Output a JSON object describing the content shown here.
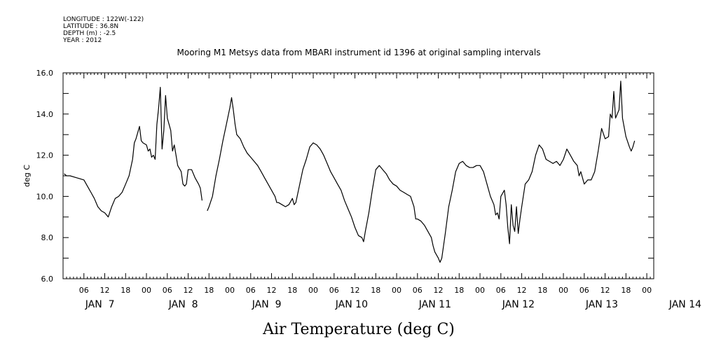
{
  "metadata_lines": [
    "LONGITUDE : 122W(-122)",
    "LATITUDE : 36.8N",
    "DEPTH (m) : -2.5",
    "YEAR : 2012"
  ],
  "chart_data": {
    "type": "line",
    "title": "Mooring M1 Metsys data from MBARI instrument id 1396 at original sampling intervals",
    "xlabel": "Air Temperature (deg C)",
    "ylabel": "deg C",
    "ylim": [
      6.0,
      16.0
    ],
    "ytick_labels": [
      "6.0",
      "8.0",
      "10.0",
      "12.0",
      "14.0",
      "16.0"
    ],
    "xlim_hours": [
      0,
      170
    ],
    "hour_ticks": [
      "06",
      "12",
      "18",
      "00",
      "06",
      "12",
      "18",
      "00",
      "06",
      "12",
      "18",
      "00",
      "06",
      "12",
      "18",
      "00",
      "06",
      "12",
      "18",
      "00",
      "06",
      "12",
      "18",
      "00",
      "06",
      "12",
      "18",
      "00"
    ],
    "day_labels": [
      "JAN  7",
      "JAN  8",
      "JAN  9",
      "JAN 10",
      "JAN 11",
      "JAN 12",
      "JAN 13",
      "JAN 14"
    ],
    "grid": false,
    "series": [
      {
        "color": "#000000",
        "segments": [
          [
            [
              0.3,
              11.1
            ],
            [
              1,
              11.0
            ],
            [
              2,
              11.0
            ],
            [
              4,
              10.9
            ],
            [
              6,
              10.8
            ],
            [
              7,
              10.5
            ],
            [
              8,
              10.2
            ],
            [
              9,
              9.9
            ],
            [
              10,
              9.5
            ],
            [
              11,
              9.3
            ],
            [
              12,
              9.2
            ],
            [
              13,
              9.0
            ],
            [
              14,
              9.5
            ],
            [
              15,
              9.9
            ],
            [
              16,
              10.0
            ],
            [
              17,
              10.2
            ],
            [
              18,
              10.6
            ],
            [
              19,
              11.0
            ],
            [
              20,
              11.8
            ],
            [
              20.5,
              12.6
            ],
            [
              21,
              12.8
            ],
            [
              22,
              13.4
            ],
            [
              22.5,
              12.7
            ],
            [
              23,
              12.6
            ],
            [
              24,
              12.5
            ],
            [
              24.5,
              12.2
            ],
            [
              25,
              12.3
            ],
            [
              25.5,
              11.9
            ],
            [
              26,
              12.0
            ],
            [
              26.5,
              11.8
            ],
            [
              27,
              13.5
            ],
            [
              27.5,
              14.3
            ],
            [
              28,
              15.3
            ],
            [
              28.5,
              12.3
            ],
            [
              29,
              13.2
            ],
            [
              29.5,
              14.9
            ],
            [
              30,
              13.8
            ],
            [
              31,
              13.2
            ],
            [
              31.5,
              12.2
            ],
            [
              32,
              12.5
            ],
            [
              32.5,
              12.0
            ],
            [
              33,
              11.5
            ],
            [
              34,
              11.2
            ],
            [
              34.5,
              10.6
            ],
            [
              35,
              10.5
            ],
            [
              35.5,
              10.6
            ],
            [
              36,
              11.3
            ],
            [
              37,
              11.3
            ],
            [
              38,
              10.9
            ],
            [
              39,
              10.6
            ],
            [
              39.5,
              10.4
            ],
            [
              40,
              9.8
            ]
          ],
          [
            [
              41.5,
              9.3
            ],
            [
              42,
              9.5
            ],
            [
              43,
              10.0
            ],
            [
              44,
              11.0
            ],
            [
              45,
              11.8
            ],
            [
              46,
              12.7
            ],
            [
              47,
              13.5
            ],
            [
              48,
              14.3
            ],
            [
              48.5,
              14.8
            ],
            [
              49,
              14.2
            ],
            [
              49.5,
              13.5
            ],
            [
              50,
              13.0
            ],
            [
              51,
              12.8
            ],
            [
              52,
              12.4
            ],
            [
              53,
              12.1
            ],
            [
              54,
              11.9
            ],
            [
              55,
              11.7
            ],
            [
              56,
              11.5
            ],
            [
              57,
              11.2
            ],
            [
              58,
              10.9
            ],
            [
              59,
              10.6
            ],
            [
              60,
              10.3
            ],
            [
              61,
              10.0
            ],
            [
              61.5,
              9.7
            ],
            [
              62,
              9.7
            ],
            [
              63,
              9.6
            ],
            [
              64,
              9.5
            ],
            [
              65,
              9.6
            ],
            [
              66,
              9.9
            ],
            [
              66.5,
              9.6
            ],
            [
              67,
              9.7
            ],
            [
              68,
              10.5
            ],
            [
              69,
              11.3
            ],
            [
              70,
              11.8
            ],
            [
              71,
              12.4
            ],
            [
              72,
              12.6
            ],
            [
              73,
              12.5
            ],
            [
              74,
              12.3
            ],
            [
              75,
              12.0
            ],
            [
              76,
              11.6
            ],
            [
              77,
              11.2
            ],
            [
              78,
              10.9
            ],
            [
              79,
              10.6
            ],
            [
              80,
              10.3
            ],
            [
              81,
              9.8
            ],
            [
              82,
              9.4
            ],
            [
              83,
              9.0
            ],
            [
              84,
              8.5
            ],
            [
              85,
              8.1
            ],
            [
              86,
              8.0
            ],
            [
              86.5,
              7.8
            ],
            [
              87,
              8.3
            ],
            [
              88,
              9.2
            ],
            [
              89,
              10.3
            ],
            [
              90,
              11.3
            ],
            [
              91,
              11.5
            ],
            [
              92,
              11.3
            ],
            [
              93,
              11.1
            ],
            [
              94,
              10.8
            ],
            [
              95,
              10.6
            ],
            [
              96,
              10.5
            ],
            [
              97,
              10.3
            ],
            [
              98,
              10.2
            ],
            [
              99,
              10.1
            ],
            [
              100,
              10.0
            ],
            [
              101,
              9.5
            ],
            [
              101.5,
              8.9
            ],
            [
              102,
              8.9
            ],
            [
              103,
              8.8
            ],
            [
              104,
              8.6
            ],
            [
              105,
              8.3
            ],
            [
              106,
              8.0
            ],
            [
              106.5,
              7.6
            ],
            [
              107,
              7.3
            ],
            [
              108,
              7.0
            ],
            [
              108.5,
              6.8
            ],
            [
              109,
              7.0
            ],
            [
              110,
              8.2
            ],
            [
              111,
              9.5
            ],
            [
              112,
              10.3
            ],
            [
              113,
              11.2
            ],
            [
              114,
              11.6
            ],
            [
              115,
              11.7
            ],
            [
              116,
              11.5
            ],
            [
              117,
              11.4
            ],
            [
              118,
              11.4
            ],
            [
              119,
              11.5
            ],
            [
              120,
              11.5
            ],
            [
              121,
              11.2
            ],
            [
              122,
              10.6
            ],
            [
              123,
              10.0
            ],
            [
              124,
              9.6
            ],
            [
              124.5,
              9.1
            ],
            [
              125,
              9.2
            ],
            [
              125.5,
              8.9
            ],
            [
              126,
              10.0
            ],
            [
              127,
              10.3
            ],
            [
              127.5,
              9.6
            ],
            [
              128,
              8.5
            ],
            [
              128.5,
              7.7
            ],
            [
              129,
              9.6
            ],
            [
              129.5,
              8.6
            ],
            [
              130,
              8.3
            ],
            [
              130.5,
              9.5
            ],
            [
              131,
              8.2
            ],
            [
              131.5,
              8.9
            ],
            [
              132,
              9.5
            ],
            [
              133,
              10.6
            ],
            [
              134,
              10.8
            ],
            [
              135,
              11.2
            ],
            [
              136,
              12.0
            ],
            [
              137,
              12.5
            ],
            [
              138,
              12.3
            ],
            [
              139,
              11.8
            ],
            [
              140,
              11.7
            ],
            [
              141,
              11.6
            ],
            [
              142,
              11.7
            ],
            [
              143,
              11.5
            ],
            [
              144,
              11.8
            ],
            [
              145,
              12.3
            ],
            [
              146,
              12.0
            ],
            [
              147,
              11.7
            ],
            [
              148,
              11.5
            ],
            [
              148.5,
              11.0
            ],
            [
              149,
              11.2
            ],
            [
              150,
              10.6
            ],
            [
              151,
              10.8
            ],
            [
              152,
              10.8
            ],
            [
              153,
              11.2
            ],
            [
              154,
              12.2
            ],
            [
              155,
              13.3
            ],
            [
              156,
              12.8
            ],
            [
              157,
              12.9
            ],
            [
              157.5,
              14.0
            ],
            [
              158,
              13.8
            ],
            [
              158.5,
              15.1
            ],
            [
              159,
              13.8
            ],
            [
              160,
              14.2
            ],
            [
              160.5,
              15.6
            ],
            [
              161,
              13.8
            ],
            [
              162,
              12.9
            ],
            [
              163,
              12.4
            ],
            [
              163.5,
              12.2
            ],
            [
              164,
              12.4
            ],
            [
              164.5,
              12.7
            ]
          ]
        ]
      }
    ]
  }
}
